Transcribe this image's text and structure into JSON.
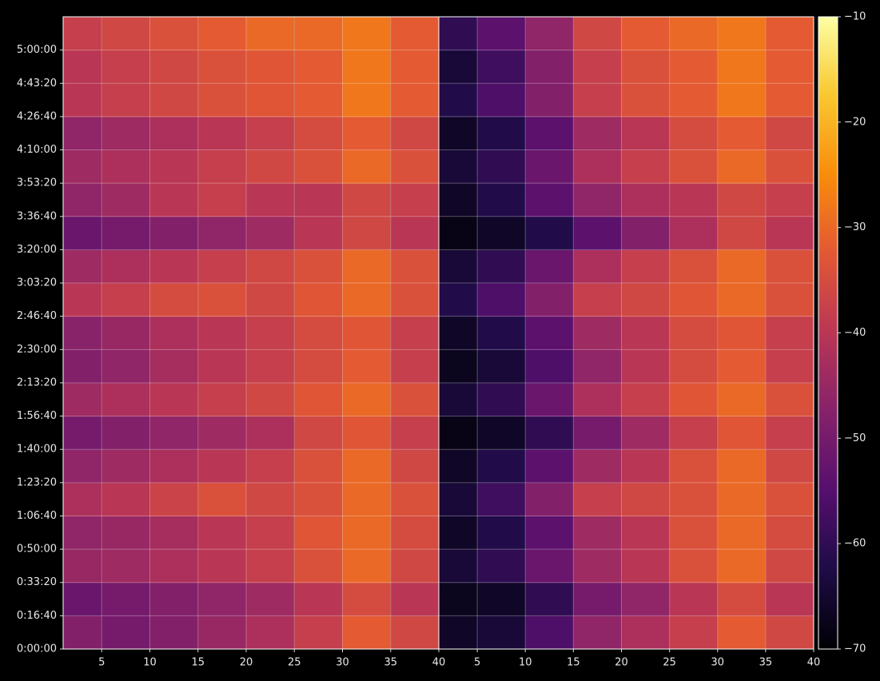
{
  "chart_data": [
    {
      "type": "heatmap",
      "cmap": "inferno",
      "clim": [
        -70,
        -10
      ],
      "cticks": [
        {
          "value": -70,
          "label": "−70"
        },
        {
          "value": -60,
          "label": "−60"
        },
        {
          "value": -50,
          "label": "−50"
        },
        {
          "value": -40,
          "label": "−40"
        },
        {
          "value": -30,
          "label": "−30"
        },
        {
          "value": -20,
          "label": "−20"
        },
        {
          "value": -10,
          "label": "−10"
        }
      ],
      "xlim": [
        1,
        40
      ],
      "ylim": [
        0,
        19000
      ],
      "grid": true,
      "xticks": [
        5,
        10,
        15,
        20,
        25,
        30,
        35,
        40
      ],
      "yticks": [
        {
          "value": 0,
          "label": "0:00:00"
        },
        {
          "value": 1000,
          "label": "0:16:40"
        },
        {
          "value": 2000,
          "label": "0:33:20"
        },
        {
          "value": 3000,
          "label": "0:50:00"
        },
        {
          "value": 4000,
          "label": "1:06:40"
        },
        {
          "value": 5000,
          "label": "1:23:20"
        },
        {
          "value": 6000,
          "label": "1:40:00"
        },
        {
          "value": 7000,
          "label": "1:56:40"
        },
        {
          "value": 8000,
          "label": "2:13:20"
        },
        {
          "value": 9000,
          "label": "2:30:00"
        },
        {
          "value": 10000,
          "label": "2:46:40"
        },
        {
          "value": 11000,
          "label": "3:03:20"
        },
        {
          "value": 12000,
          "label": "3:20:00"
        },
        {
          "value": 13000,
          "label": "3:36:40"
        },
        {
          "value": 14000,
          "label": "3:53:20"
        },
        {
          "value": 15000,
          "label": "4:10:00"
        },
        {
          "value": 16000,
          "label": "4:26:40"
        },
        {
          "value": 17000,
          "label": "4:43:20"
        },
        {
          "value": 18000,
          "label": "5:00:00"
        }
      ],
      "x_bins": [
        1,
        5,
        10,
        15,
        20,
        25,
        30,
        35,
        40
      ],
      "y_bins": [
        0,
        1000,
        2000,
        3000,
        4000,
        5000,
        6000,
        7000,
        8000,
        9000,
        10000,
        11000,
        12000,
        13000,
        14000,
        15000,
        16000,
        17000,
        18000,
        19000
      ],
      "values": [
        [
          -48,
          -50,
          -48,
          -45,
          -42,
          -38,
          -32,
          -36
        ],
        [
          -52,
          -50,
          -48,
          -46,
          -44,
          -40,
          -35,
          -40
        ],
        [
          -45,
          -44,
          -42,
          -40,
          -38,
          -34,
          -30,
          -36
        ],
        [
          -46,
          -45,
          -43,
          -40,
          -38,
          -33,
          -30,
          -35
        ],
        [
          -42,
          -40,
          -37,
          -34,
          -36,
          -34,
          -30,
          -34
        ],
        [
          -46,
          -44,
          -42,
          -40,
          -38,
          -34,
          -30,
          -36
        ],
        [
          -50,
          -48,
          -46,
          -44,
          -42,
          -36,
          -33,
          -38
        ],
        [
          -44,
          -42,
          -40,
          -38,
          -36,
          -33,
          -30,
          -34
        ],
        [
          -48,
          -46,
          -43,
          -40,
          -38,
          -35,
          -32,
          -38
        ],
        [
          -47,
          -45,
          -42,
          -40,
          -38,
          -35,
          -33,
          -38
        ],
        [
          -40,
          -38,
          -35,
          -34,
          -36,
          -33,
          -30,
          -34
        ],
        [
          -44,
          -42,
          -40,
          -38,
          -36,
          -34,
          -30,
          -34
        ],
        [
          -52,
          -50,
          -48,
          -46,
          -44,
          -40,
          -36,
          -40
        ],
        [
          -46,
          -44,
          -40,
          -38,
          -40,
          -40,
          -36,
          -38
        ],
        [
          -44,
          -42,
          -40,
          -38,
          -36,
          -34,
          -30,
          -34
        ],
        [
          -46,
          -44,
          -42,
          -40,
          -38,
          -35,
          -32,
          -36
        ],
        [
          -40,
          -38,
          -36,
          -34,
          -33,
          -32,
          -28,
          -32
        ],
        [
          -40,
          -38,
          -36,
          -34,
          -33,
          -32,
          -28,
          -32
        ],
        [
          -38,
          -36,
          -34,
          -32,
          -30,
          -30,
          -28,
          -32
        ]
      ]
    },
    {
      "type": "heatmap",
      "xlim": [
        1,
        40
      ],
      "xticks": [
        5,
        10,
        15,
        20,
        25,
        30,
        35,
        40
      ],
      "x_bins": [
        1,
        5,
        10,
        15,
        20,
        25,
        30,
        35,
        40
      ],
      "values": [
        [
          -66,
          -64,
          -56,
          -46,
          -42,
          -38,
          -32,
          -36
        ],
        [
          -67,
          -66,
          -60,
          -50,
          -46,
          -40,
          -35,
          -40
        ],
        [
          -64,
          -60,
          -52,
          -44,
          -40,
          -34,
          -30,
          -36
        ],
        [
          -66,
          -62,
          -54,
          -44,
          -40,
          -34,
          -30,
          -35
        ],
        [
          -64,
          -58,
          -48,
          -38,
          -36,
          -34,
          -30,
          -34
        ],
        [
          -66,
          -62,
          -54,
          -44,
          -40,
          -34,
          -30,
          -36
        ],
        [
          -68,
          -66,
          -60,
          -50,
          -44,
          -38,
          -33,
          -38
        ],
        [
          -64,
          -60,
          -52,
          -42,
          -38,
          -33,
          -30,
          -34
        ],
        [
          -67,
          -64,
          -56,
          -46,
          -40,
          -35,
          -32,
          -38
        ],
        [
          -66,
          -62,
          -54,
          -44,
          -40,
          -35,
          -33,
          -38
        ],
        [
          -62,
          -56,
          -48,
          -38,
          -36,
          -33,
          -30,
          -34
        ],
        [
          -64,
          -60,
          -52,
          -42,
          -38,
          -34,
          -30,
          -34
        ],
        [
          -68,
          -66,
          -62,
          -54,
          -48,
          -42,
          -36,
          -40
        ],
        [
          -66,
          -62,
          -54,
          -46,
          -42,
          -40,
          -36,
          -38
        ],
        [
          -64,
          -60,
          -52,
          -42,
          -38,
          -34,
          -30,
          -34
        ],
        [
          -66,
          -62,
          -54,
          -44,
          -40,
          -35,
          -32,
          -36
        ],
        [
          -62,
          -56,
          -48,
          -38,
          -34,
          -32,
          -28,
          -32
        ],
        [
          -64,
          -58,
          -48,
          -38,
          -34,
          -32,
          -28,
          -32
        ],
        [
          -60,
          -54,
          -46,
          -36,
          -32,
          -30,
          -28,
          -32
        ]
      ]
    }
  ]
}
